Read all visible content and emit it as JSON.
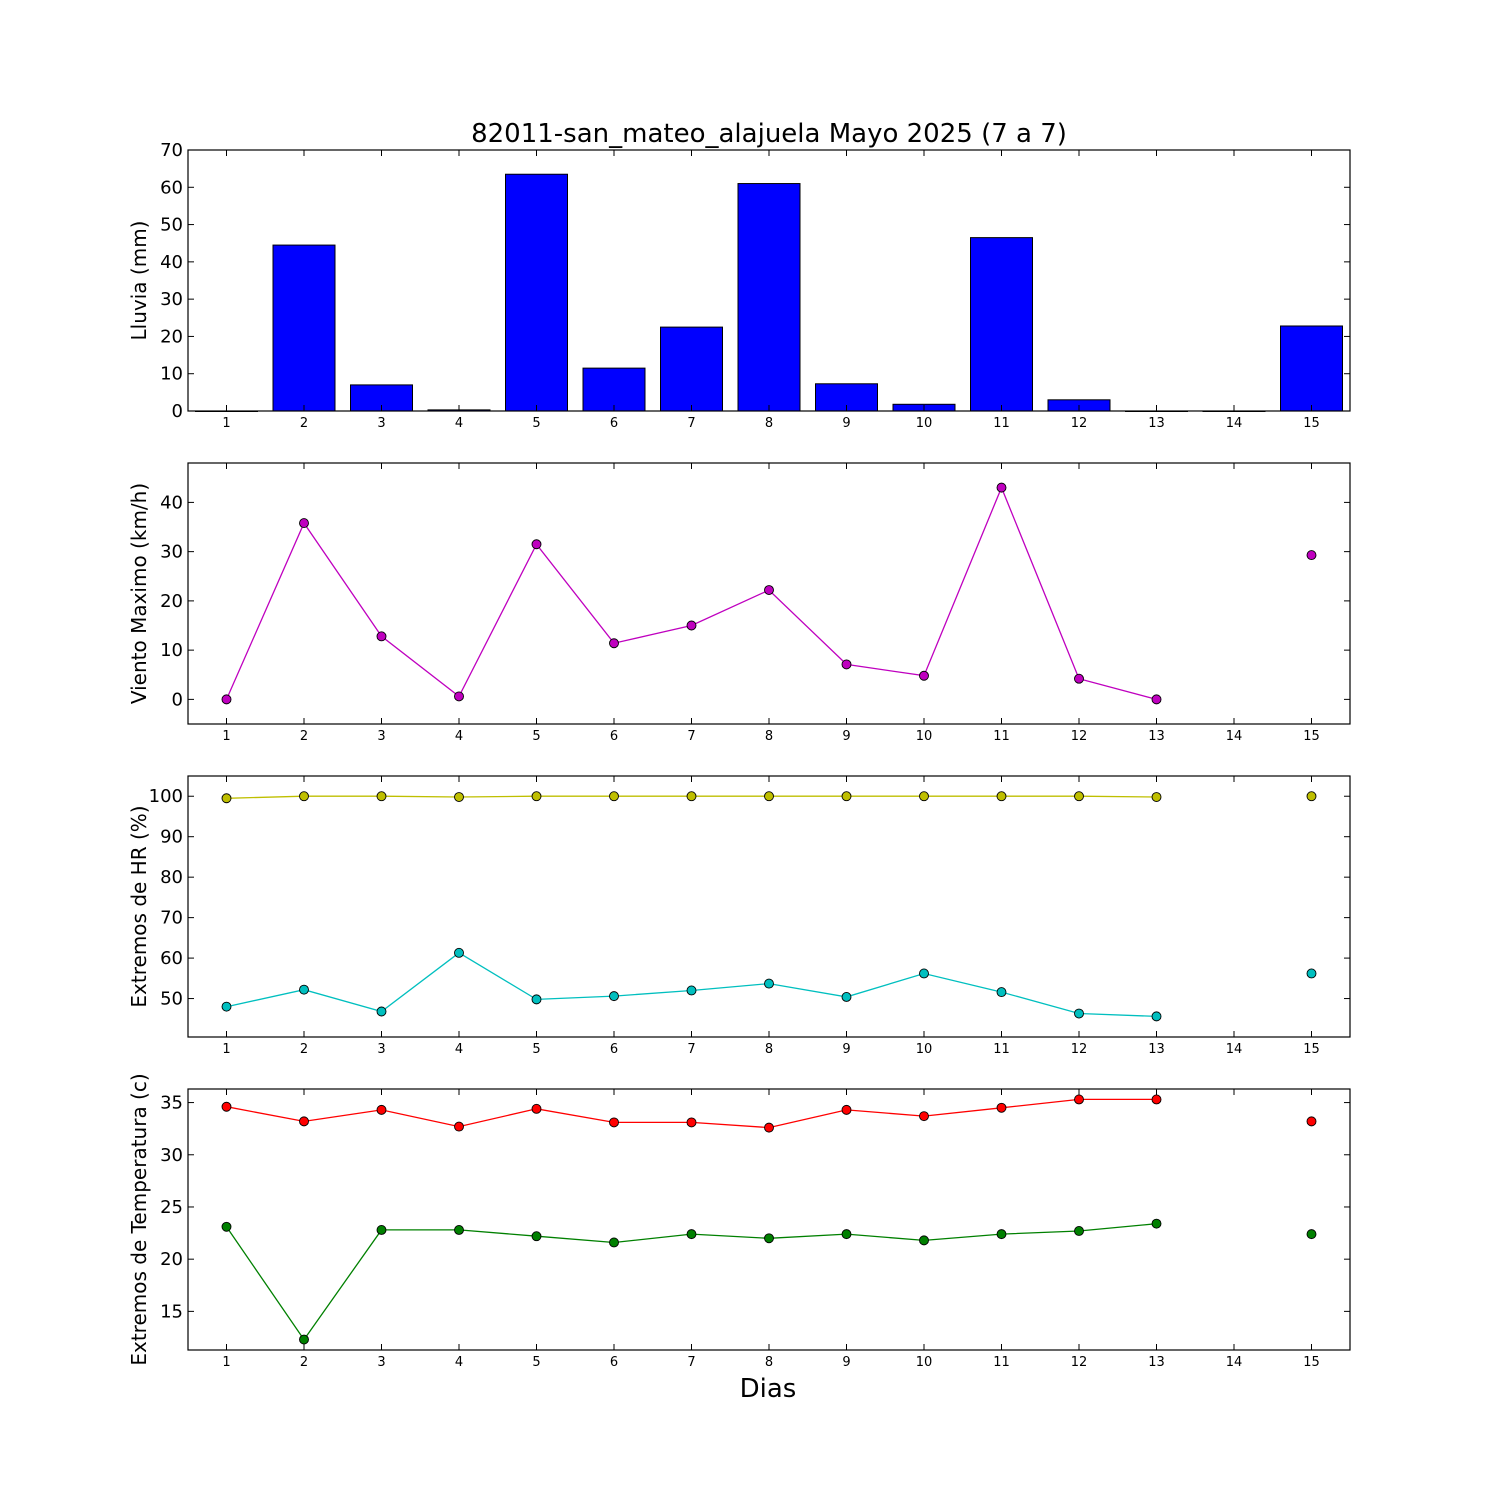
{
  "title": "82011-san_mateo_alajuela Mayo 2025  (7 a 7)",
  "xlabel": "Dias",
  "x_ticks": [
    "1",
    "2",
    "3",
    "4",
    "5",
    "6",
    "7",
    "8",
    "9",
    "10",
    "11",
    "12",
    "13",
    "14",
    "15"
  ],
  "chart_data": [
    {
      "type": "bar",
      "ylabel": "Lluvia (mm)",
      "x": [
        1,
        2,
        3,
        4,
        5,
        6,
        7,
        8,
        9,
        10,
        11,
        12,
        13,
        14,
        15
      ],
      "values": [
        0,
        44.5,
        7,
        0.3,
        63.5,
        11.5,
        22.5,
        61,
        7.3,
        1.8,
        46.5,
        3,
        0,
        0,
        22.8
      ],
      "color": "#0000ff",
      "ylim": [
        0,
        70
      ],
      "yticks": [
        0,
        10,
        20,
        30,
        40,
        50,
        60,
        70
      ]
    },
    {
      "type": "line",
      "ylabel": "Viento Maximo (km/h)",
      "x": [
        1,
        2,
        3,
        4,
        5,
        6,
        7,
        8,
        9,
        10,
        11,
        12,
        13,
        14,
        15
      ],
      "ylim": [
        -5,
        48
      ],
      "yticks": [
        0,
        10,
        20,
        30,
        40
      ],
      "series": [
        {
          "color": "#bf00bf",
          "values": [
            0,
            35.8,
            12.8,
            0.6,
            31.5,
            11.4,
            15,
            22.2,
            7.1,
            4.8,
            43,
            4.2,
            0,
            null,
            29.3
          ]
        }
      ]
    },
    {
      "type": "line",
      "ylabel": "Extremos de HR (%)",
      "x": [
        1,
        2,
        3,
        4,
        5,
        6,
        7,
        8,
        9,
        10,
        11,
        12,
        13,
        14,
        15
      ],
      "ylim": [
        40.5,
        105
      ],
      "yticks": [
        50,
        60,
        70,
        80,
        90,
        100
      ],
      "series": [
        {
          "color": "#bfbf00",
          "values": [
            99.5,
            100,
            100,
            99.8,
            100,
            100,
            100,
            100,
            100,
            100,
            100,
            100,
            99.8,
            null,
            100
          ]
        },
        {
          "color": "#00bfbf",
          "values": [
            48,
            52.2,
            46.8,
            61.3,
            49.8,
            50.6,
            52,
            53.7,
            50.4,
            56.2,
            51.6,
            46.3,
            45.6,
            null,
            56.2
          ]
        }
      ]
    },
    {
      "type": "line",
      "ylabel": "Extremos de Temperatura (c)",
      "x": [
        1,
        2,
        3,
        4,
        5,
        6,
        7,
        8,
        9,
        10,
        11,
        12,
        13,
        14,
        15
      ],
      "ylim": [
        11.3,
        36.3
      ],
      "yticks": [
        15,
        20,
        25,
        30,
        35
      ],
      "series": [
        {
          "color": "#ff0000",
          "values": [
            34.6,
            33.2,
            34.3,
            32.7,
            34.4,
            33.1,
            33.1,
            32.6,
            34.3,
            33.7,
            34.5,
            35.3,
            35.3,
            null,
            33.2
          ]
        },
        {
          "color": "#008000",
          "values": [
            23.1,
            12.3,
            22.8,
            22.8,
            22.2,
            21.6,
            22.4,
            22,
            22.4,
            21.8,
            22.4,
            22.7,
            23.4,
            null,
            22.4
          ]
        }
      ]
    }
  ]
}
